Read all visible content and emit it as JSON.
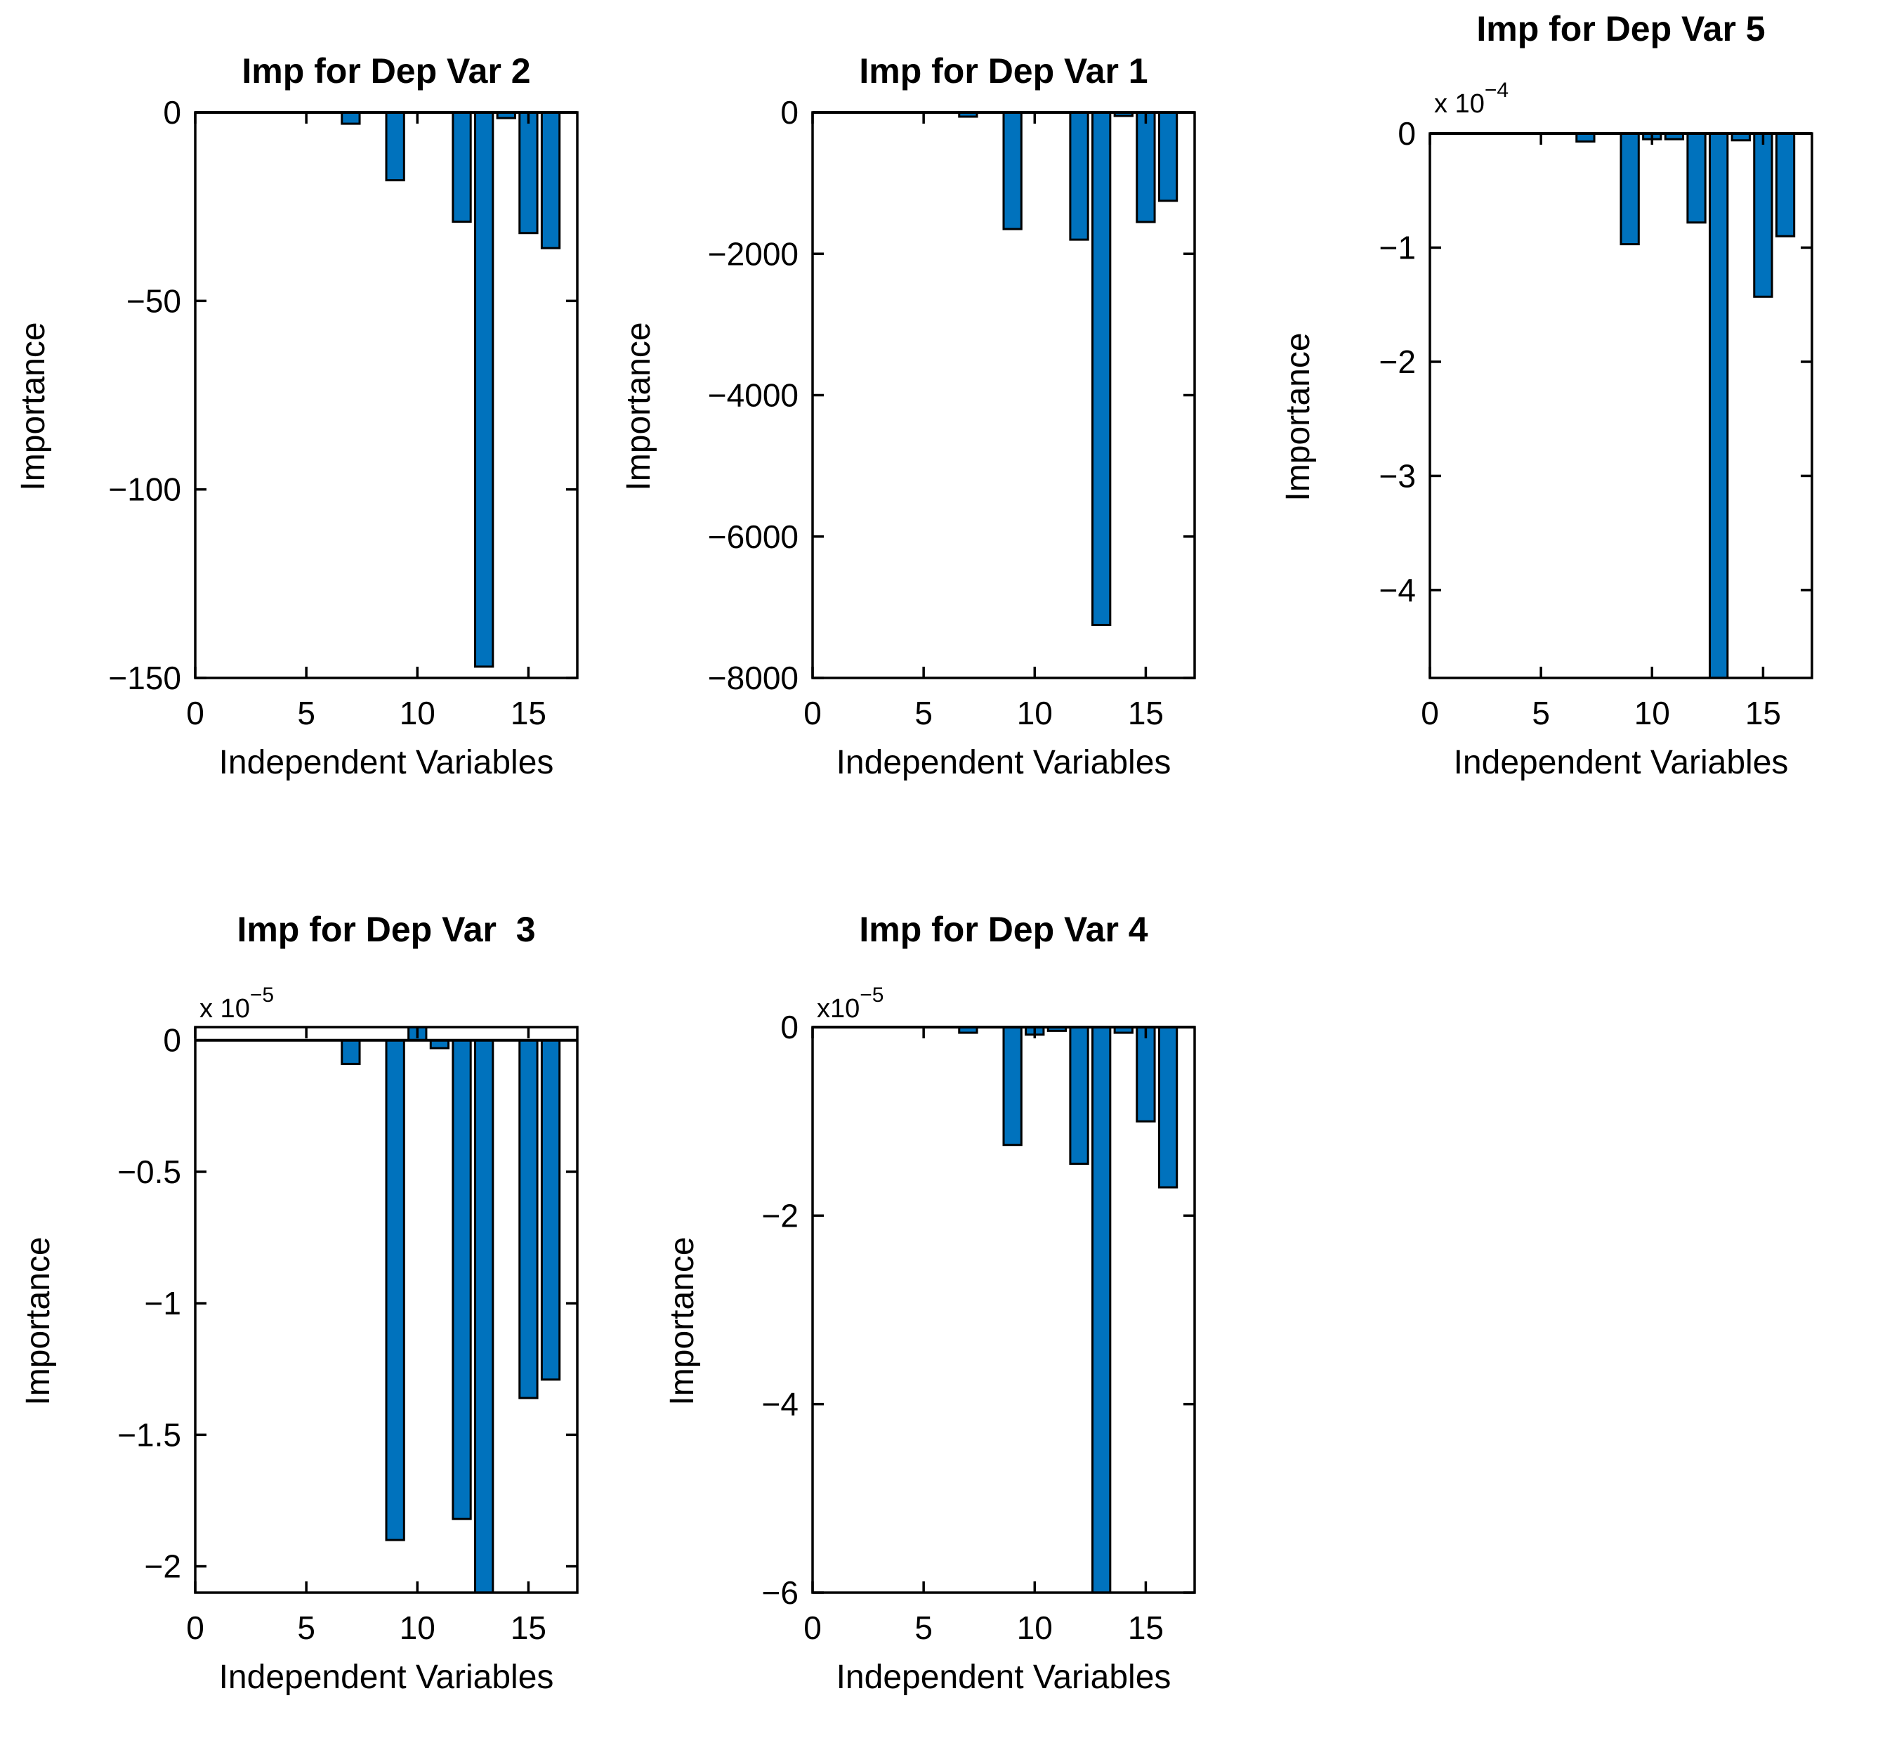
{
  "figure": {
    "background": "#ffffff",
    "bar_color": "#0072BD",
    "bar_edge_color": "#000000",
    "axis_color": "#000000",
    "text_color": "#000000"
  },
  "chart_data": [
    {
      "type": "bar",
      "title": "Imp for Dep Var 2",
      "xlabel": "Independent Variables",
      "ylabel": "Importance",
      "scale_label": null,
      "xlim": [
        0,
        17.2
      ],
      "ylim": [
        -150,
        0
      ],
      "xticks": [
        0,
        5,
        10,
        15
      ],
      "yticks": [
        0,
        -50,
        -100,
        -150
      ],
      "ytick_labels": [
        "0",
        "−50",
        "−100",
        "−150"
      ],
      "bar_width": 0.8,
      "grid": false,
      "x": [
        7,
        9,
        12,
        13,
        14,
        15,
        16
      ],
      "values": [
        -3,
        -18,
        -29,
        -147,
        -1.5,
        -32,
        -36
      ]
    },
    {
      "type": "bar",
      "title": "Imp for Dep Var 1",
      "xlabel": "Independent Variables",
      "ylabel": "Importance",
      "scale_label": null,
      "xlim": [
        0,
        17.2
      ],
      "ylim": [
        -8000,
        0
      ],
      "xticks": [
        0,
        5,
        10,
        15
      ],
      "yticks": [
        0,
        -2000,
        -4000,
        -6000,
        -8000
      ],
      "ytick_labels": [
        "0",
        "−2000",
        "−4000",
        "−6000",
        "−8000"
      ],
      "bar_width": 0.8,
      "grid": false,
      "x": [
        7,
        9,
        12,
        13,
        14,
        15,
        16
      ],
      "values": [
        -60,
        -1650,
        -1800,
        -7250,
        -50,
        -1550,
        -1250
      ]
    },
    {
      "type": "bar",
      "title": "Imp for Dep Var 5",
      "xlabel": "Independent Variables",
      "ylabel": "Importance",
      "scale_label": {
        "prefix": "x 10",
        "exponent": "−4"
      },
      "xlim": [
        0,
        17.2
      ],
      "ylim": [
        -4.77,
        0
      ],
      "xticks": [
        0,
        5,
        10,
        15
      ],
      "yticks": [
        0,
        -1,
        -2,
        -3,
        -4
      ],
      "ytick_labels": [
        "0",
        "−1",
        "−2",
        "−3",
        "−4"
      ],
      "bar_width": 0.8,
      "grid": false,
      "x": [
        7,
        9,
        10,
        11,
        12,
        13,
        14,
        15,
        16
      ],
      "values": [
        -0.07,
        -0.97,
        -0.05,
        -0.05,
        -0.78,
        -4.9,
        -0.06,
        -1.43,
        -0.9
      ]
    },
    {
      "type": "bar",
      "title": "Imp for Dep Var  3",
      "xlabel": "Independent Variables",
      "ylabel": "Importance",
      "scale_label": {
        "prefix": "x 10",
        "exponent": "−5"
      },
      "xlim": [
        0,
        17.2
      ],
      "ylim": [
        -2.1,
        0.05
      ],
      "xticks": [
        0,
        5,
        10,
        15
      ],
      "yticks": [
        0,
        -0.5,
        -1,
        -1.5,
        -2
      ],
      "ytick_labels": [
        "0",
        "−0.5",
        "−1",
        "−1.5",
        "−2"
      ],
      "bar_width": 0.8,
      "grid": false,
      "x": [
        7,
        9,
        10,
        11,
        12,
        13,
        15,
        16
      ],
      "values": [
        -0.09,
        -1.9,
        0.06,
        -0.03,
        -1.82,
        -2.3,
        -1.36,
        -1.29
      ]
    },
    {
      "type": "bar",
      "title": "Imp for Dep Var 4",
      "xlabel": "Independent Variables",
      "ylabel": "Importance",
      "scale_label": {
        "prefix": "x10",
        "exponent": "−5"
      },
      "xlim": [
        0,
        17.2
      ],
      "ylim": [
        -6,
        0
      ],
      "xticks": [
        0,
        5,
        10,
        15
      ],
      "yticks": [
        0,
        -2,
        -4,
        -6
      ],
      "ytick_labels": [
        "0",
        "−2",
        "−4",
        "−6"
      ],
      "bar_width": 0.8,
      "grid": false,
      "x": [
        7,
        9,
        10,
        11,
        12,
        13,
        14,
        15,
        16
      ],
      "values": [
        -0.06,
        -1.25,
        -0.08,
        -0.04,
        -1.45,
        -6.3,
        -0.06,
        -1.0,
        -1.7
      ]
    }
  ]
}
